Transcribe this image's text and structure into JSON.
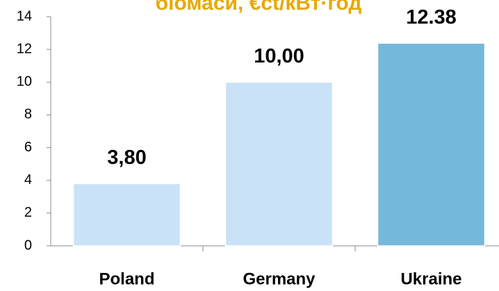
{
  "chart_data": {
    "type": "bar",
    "title": "біомаси, €ct/кВт·год",
    "categories": [
      "Poland",
      "Germany",
      "Ukraine"
    ],
    "values": [
      3.8,
      10,
      12.38
    ],
    "value_labels": [
      "3,80",
      "10,00",
      "12.38"
    ],
    "colors": [
      "#c9e2f8",
      "#c9e2f8",
      "#74b9db"
    ],
    "ylim": [
      0,
      14
    ],
    "yticks": [
      0,
      2,
      4,
      6,
      8,
      10,
      12,
      14
    ],
    "grid": false
  }
}
